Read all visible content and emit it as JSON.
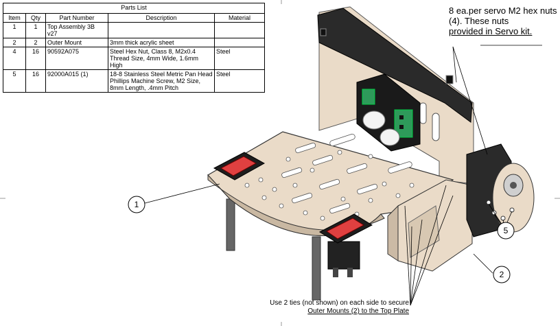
{
  "parts_list": {
    "title": "Parts List",
    "headers": [
      "Item",
      "Qty",
      "Part Number",
      "Description",
      "Material"
    ],
    "rows": [
      {
        "item": "1",
        "qty": "1",
        "part_number": "Top Assembly 3B v27",
        "description": "",
        "material": ""
      },
      {
        "item": "2",
        "qty": "2",
        "part_number": "Outer Mount",
        "description": "3mm thick acrylic sheet",
        "material": ""
      },
      {
        "item": "4",
        "qty": "16",
        "part_number": "90592A075",
        "description": "Steel Hex Nut, Class 8, M2x0.4 Thread Size, 4mm Wide, 1.6mm High",
        "material": "Steel"
      },
      {
        "item": "5",
        "qty": "16",
        "part_number": "92000A015 (1)",
        "description": "18-8 Stainless Steel Metric Pan Head Phillips Machine Screw, M2 Size, 8mm Length, .4mm Pitch",
        "material": "Steel"
      }
    ]
  },
  "notes": {
    "servo_nuts_line1": "8 ea.per servo M2 hex nuts (4). These nuts",
    "servo_nuts_line2": "provided in Servo kit.",
    "ties_line1": "Use 2 ties (not shown) on each side  to secure",
    "ties_line2": "Outer Mounts (2) to the Top Plate"
  },
  "callouts": [
    {
      "label": "1"
    },
    {
      "label": "2"
    },
    {
      "label": "5"
    }
  ]
}
